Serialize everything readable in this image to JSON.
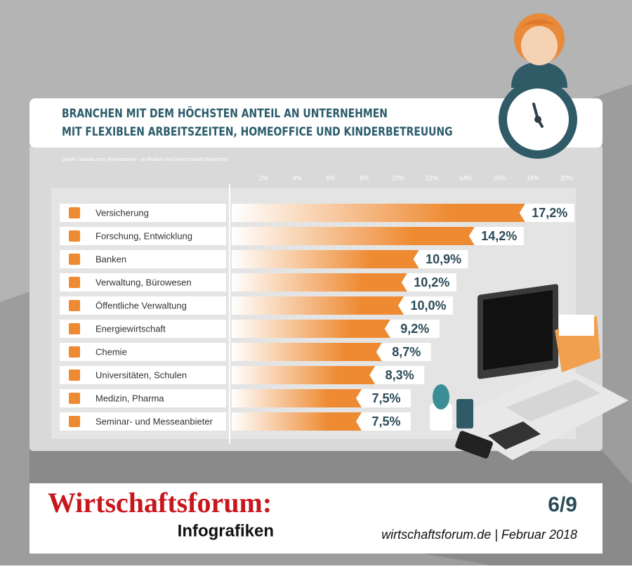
{
  "chart_data": {
    "type": "hbar",
    "title": [
      "BRANCHEN MIT DEM HÖCHSTEN ANTEIL AN UNTERNEHMEN",
      "MIT FLEXIBLEN ARBEITSZEITEN, HOMEOFFICE UND KINDERBETREUUNG"
    ],
    "source": "Quelle: statista.com (Arbeitszeiten - so flexibel sind Deutschlands Branchen)",
    "categories": [
      "Versicherung",
      "Forschung, Entwicklung",
      "Banken",
      "Verwaltung, Bürowesen",
      "Öffentliche Verwaltung",
      "Energiewirtschaft",
      "Chemie",
      "Universitäten, Schulen",
      "Medizin, Pharma",
      "Seminar- und Messeanbieter"
    ],
    "values": [
      17.2,
      14.2,
      10.9,
      10.2,
      10.0,
      9.2,
      8.7,
      8.3,
      7.5,
      7.5
    ],
    "value_labels": [
      "17,2%",
      "14,2%",
      "10,9%",
      "10,2%",
      "10,0%",
      "9,2%",
      "8,7%",
      "8,3%",
      "7,5%",
      "7,5%"
    ],
    "color": "#ee8a32",
    "xlim": [
      0,
      20
    ],
    "xticks": [
      {
        "value": 2,
        "label": "2%"
      },
      {
        "value": 4,
        "label": "4%"
      },
      {
        "value": 6,
        "label": "6%"
      },
      {
        "value": 8,
        "label": "8%"
      },
      {
        "value": 10,
        "label": "10%"
      },
      {
        "value": 12,
        "label": "12%"
      },
      {
        "value": 14,
        "label": "14%"
      },
      {
        "value": 16,
        "label": "16%"
      },
      {
        "value": 18,
        "label": "18%"
      },
      {
        "value": 20,
        "label": "20%"
      }
    ]
  },
  "footer": {
    "brand": "Wirtschaftsforum:",
    "subtitle": "Infografiken",
    "page": "6/9",
    "site": "wirtschaftsforum.de | Februar 2018"
  }
}
